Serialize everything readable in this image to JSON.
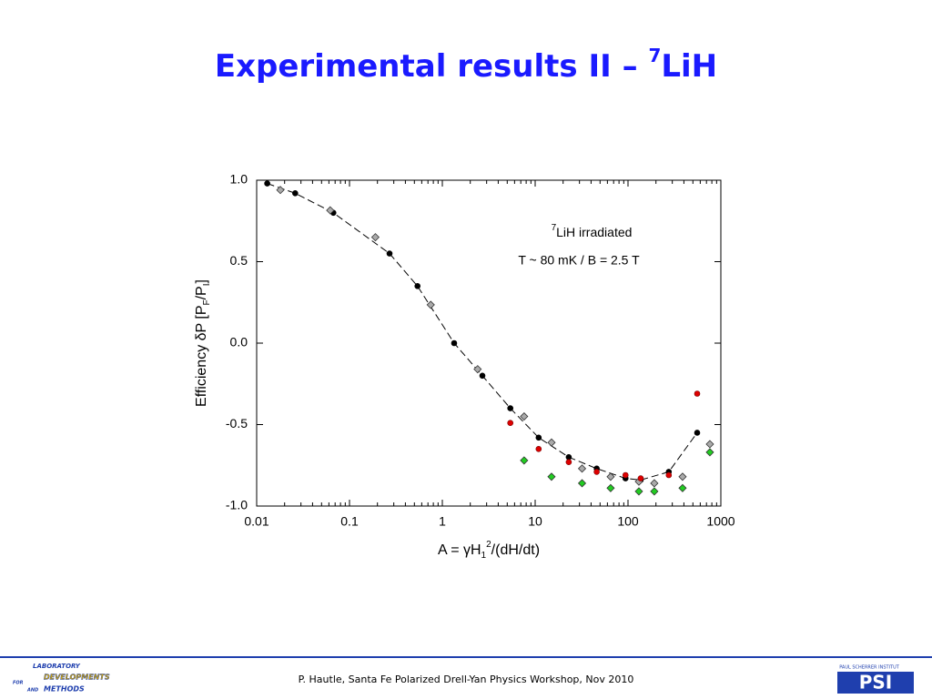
{
  "chart_data": {
    "type": "scatter",
    "title": "Experimental results II – ",
    "title_sup": "7",
    "title_tail": "LiH",
    "annotations": [
      {
        "sup": "7",
        "text": "LiH irradiated"
      },
      {
        "text": "T ~ 80 mK / B = 2.5 T"
      }
    ],
    "ylabel": {
      "a": "Efficiency δP [P",
      "sub1": "F",
      "b": "/P",
      "sub2": "I",
      "c": "]"
    },
    "xlabel": {
      "a": "A = γH",
      "sub": "1",
      "sup": "2",
      "b": "/(dH/dt)"
    },
    "xscale": "log",
    "minor_ticks": true,
    "xlim": [
      0.01,
      1000
    ],
    "xticks": [
      0.01,
      0.1,
      1,
      10,
      100,
      1000
    ],
    "ylim": [
      -1,
      1
    ],
    "yticks": [
      {
        "value": 1,
        "label": "1.0"
      },
      {
        "value": 0.5,
        "label": "0.5"
      },
      {
        "value": 0,
        "label": "0.0"
      },
      {
        "value": -0.5,
        "label": "-0.5"
      },
      {
        "value": -1,
        "label": "-1.0"
      }
    ],
    "series": [
      {
        "color": "#000000",
        "marker": "circle",
        "line": "dashed",
        "x": [
          0.013,
          0.026,
          0.067,
          0.27,
          0.54,
          1.34,
          2.7,
          5.4,
          10.9,
          23,
          46,
          94,
          137,
          275,
          556
        ],
        "values": [
          0.98,
          0.92,
          0.8,
          0.55,
          0.35,
          0.0,
          -0.2,
          -0.4,
          -0.58,
          -0.7,
          -0.77,
          -0.83,
          -0.84,
          -0.79,
          -0.55
        ]
      },
      {
        "color": "#aaaaaa",
        "marker": "diamond",
        "x": [
          0.018,
          0.062,
          0.19,
          0.75,
          2.4,
          7.6,
          15,
          32,
          65,
          131,
          192,
          387,
          762
        ],
        "values": [
          0.94,
          0.815,
          0.65,
          0.235,
          -0.16,
          -0.45,
          -0.61,
          -0.77,
          -0.82,
          -0.85,
          -0.86,
          -0.82,
          -0.62
        ]
      },
      {
        "color": "#dd0000",
        "marker": "circle",
        "x": [
          5.4,
          10.9,
          23,
          46,
          94,
          137,
          275,
          556
        ],
        "values": [
          -0.49,
          -0.65,
          -0.73,
          -0.79,
          -0.81,
          -0.83,
          -0.81,
          -0.31
        ]
      },
      {
        "color": "#22cc22",
        "marker": "diamond",
        "x": [
          7.6,
          15,
          32,
          65,
          131,
          192,
          387,
          762
        ],
        "values": [
          -0.72,
          -0.82,
          -0.86,
          -0.89,
          -0.91,
          -0.91,
          -0.89,
          -0.67
        ]
      }
    ]
  },
  "footer": {
    "text": "P. Hautle, Santa Fe Polarized Drell-Yan Physics Workshop, Nov 2010",
    "left_logo": [
      "LABORATORY",
      "DEVELOPMENTS",
      "FOR",
      "AND",
      "METHODS"
    ],
    "right_logo": [
      "PAUL SCHERRER INSTITUT",
      "PSI"
    ]
  }
}
